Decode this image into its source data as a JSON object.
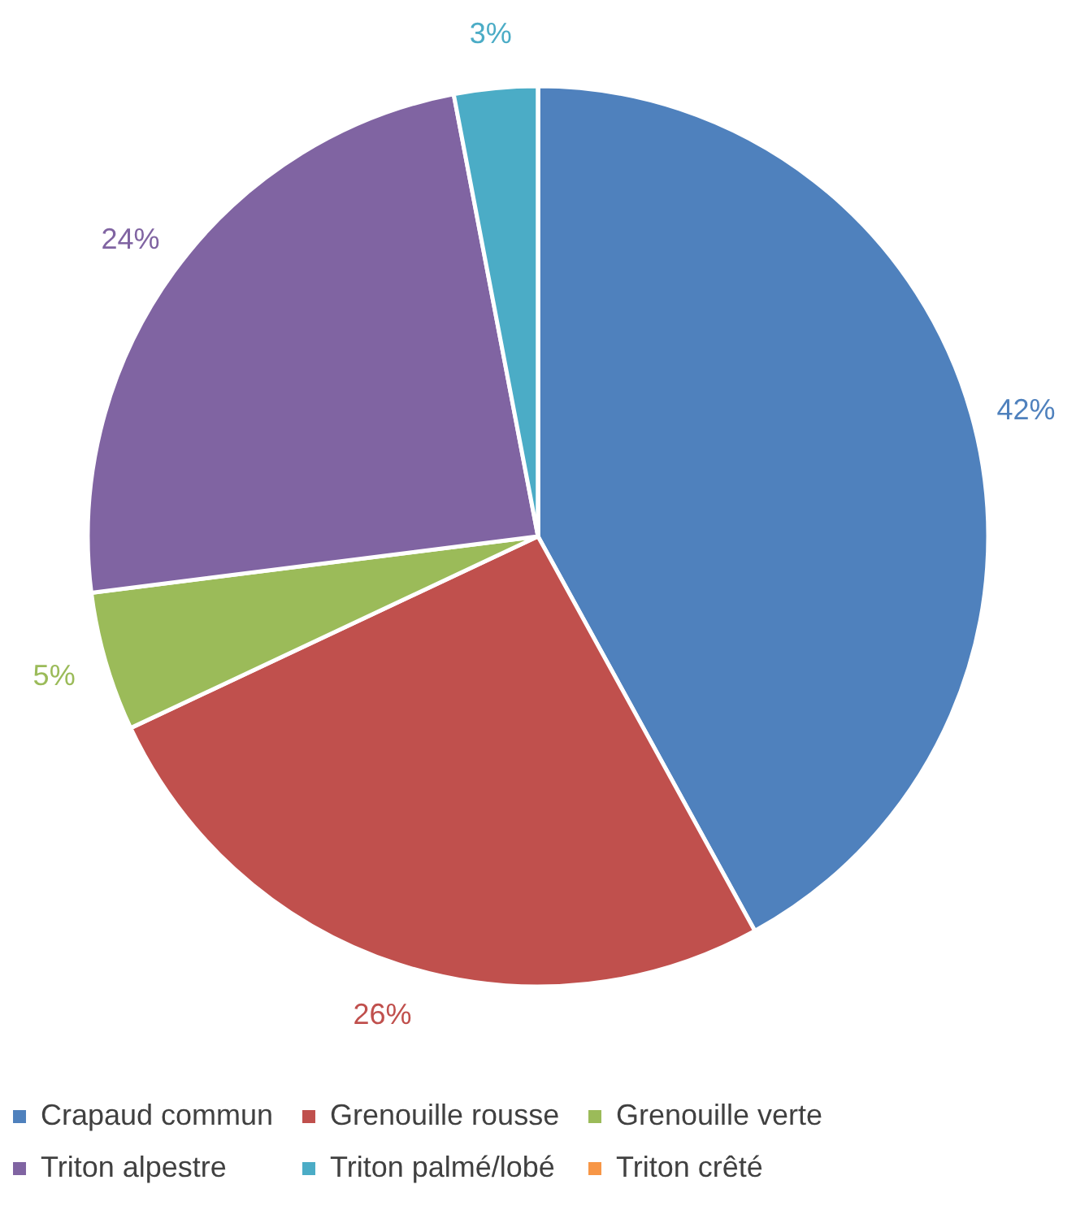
{
  "chart_data": {
    "type": "pie",
    "categories": [
      "Crapaud commun",
      "Grenouille rousse",
      "Grenouille verte",
      "Triton alpestre",
      "Triton palmé/lobé",
      "Triton crêté"
    ],
    "values": [
      42,
      26,
      5,
      24,
      3,
      0
    ],
    "colors": [
      "#4f81bd",
      "#c0504d",
      "#9bbb59",
      "#8064a2",
      "#4bacc6",
      "#f79646"
    ],
    "value_labels": [
      "42%",
      "26%",
      "5%",
      "24%",
      "3%",
      null
    ],
    "legend": "bottom"
  }
}
